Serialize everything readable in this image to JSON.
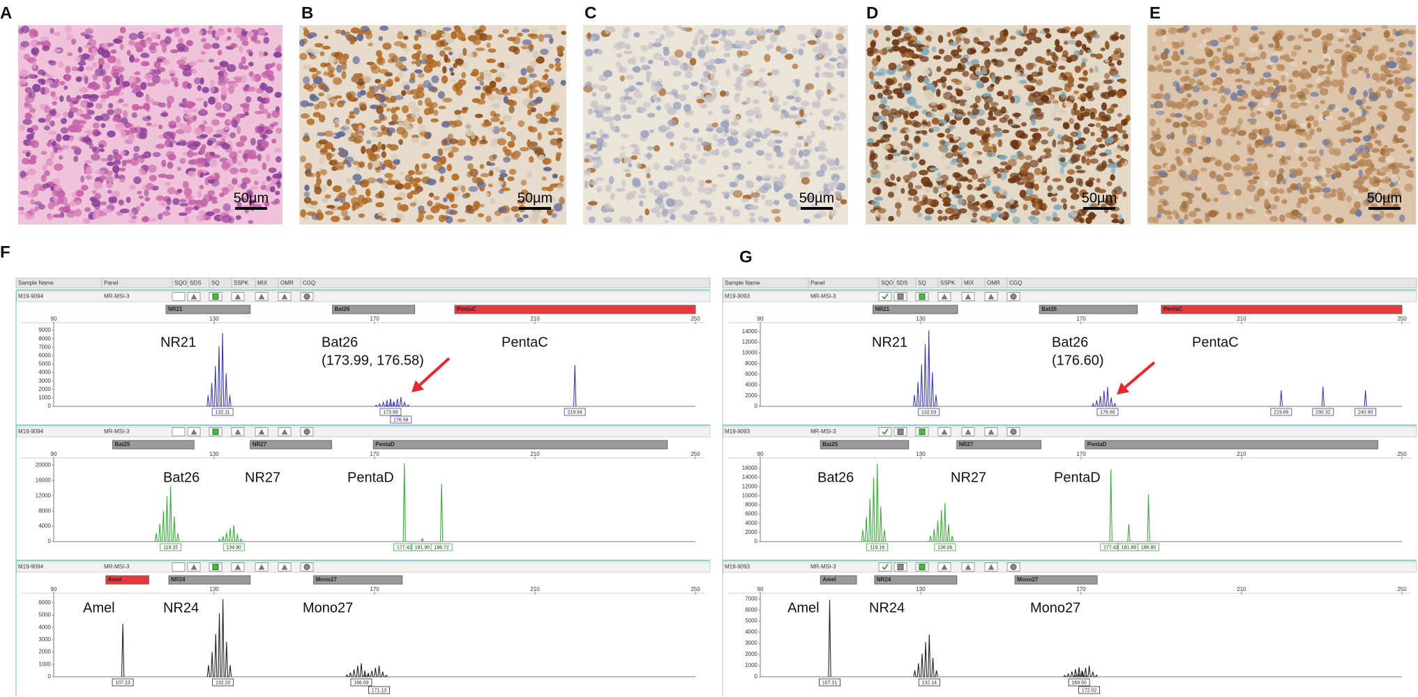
{
  "image_panels": [
    {
      "label": "A",
      "scale_bar": "50µm"
    },
    {
      "label": "B",
      "scale_bar": "50µm"
    },
    {
      "label": "C",
      "scale_bar": "50µm"
    },
    {
      "label": "D",
      "scale_bar": "50µm"
    },
    {
      "label": "E",
      "scale_bar": "50µm"
    }
  ],
  "electropherograms": [
    {
      "label": "F",
      "header": [
        "Sample Name",
        "Panel",
        "SQO",
        "SDS",
        "SQ",
        "SSPK",
        "MIX",
        "OMR",
        "CGQ"
      ],
      "traces": [
        {
          "sample": "M19-9094",
          "panel": "MR-MSI-3",
          "color": "#3b3bab",
          "markers": [
            {
              "name": "NR21",
              "range": [
                118,
                139
              ],
              "color": "#9a9a9a"
            },
            {
              "name": "Bat26",
              "range": [
                159.5,
                180
              ],
              "color": "#9a9a9a"
            },
            {
              "name": "PentaC",
              "range": [
                190,
                250
              ],
              "color": "#e8383d"
            }
          ],
          "xlim": [
            90,
            250
          ],
          "xticks": [
            90,
            130,
            170,
            210,
            250
          ],
          "ylim": [
            0,
            9500
          ],
          "yticks": [
            0,
            1000,
            2000,
            3000,
            4000,
            5000,
            6000,
            7000,
            8000,
            9000
          ],
          "annotations": [
            "NR21",
            "Bat26",
            "(173.99, 176.58)",
            "PentaC"
          ],
          "peaks": [
            {
              "size": 132.11,
              "height": 8700
            },
            {
              "size": 173.99,
              "height": 900
            },
            {
              "size": 176.58,
              "height": 1100
            },
            {
              "size": 219.94,
              "height": 4900
            }
          ]
        },
        {
          "sample": "M19-9094",
          "panel": "MR-MSI-3",
          "color": "#3aaa3a",
          "markers": [
            {
              "name": "Bat25",
              "range": [
                104.7,
                125
              ],
              "color": "#9a9a9a"
            },
            {
              "name": "NR27",
              "range": [
                139,
                159.3
              ],
              "color": "#9a9a9a"
            },
            {
              "name": "PentaD",
              "range": [
                169.7,
                243
              ],
              "color": "#9a9a9a"
            }
          ],
          "xlim": [
            90,
            250
          ],
          "xticks": [
            90,
            130,
            170,
            210,
            250
          ],
          "ylim": [
            0,
            21000
          ],
          "yticks": [
            0,
            4000,
            8000,
            12000,
            16000,
            20000
          ],
          "annotations": [
            "Bat26",
            "NR27",
            "PentaD"
          ],
          "peaks": [
            {
              "size": 119.15,
              "height": 14500
            },
            {
              "size": 134.9,
              "label": "134.90",
              "height": 4300
            },
            {
              "size": 177.42,
              "height": 20500
            },
            {
              "size": 181.9,
              "label": "181.90",
              "height": 800
            },
            {
              "size": 186.72,
              "height": 15200
            }
          ]
        },
        {
          "sample": "M19-9094",
          "panel": "MR-MSI-3",
          "color": "#222222",
          "markers": [
            {
              "name": "Amel",
              "range": [
                103,
                113.7
              ],
              "color": "#e8383d"
            },
            {
              "name": "NR24",
              "range": [
                118.7,
                139
              ],
              "color": "#9a9a9a"
            },
            {
              "name": "Mono27",
              "range": [
                154.8,
                176.9
              ],
              "color": "#9a9a9a"
            }
          ],
          "xlim": [
            90,
            250
          ],
          "xticks": [
            90,
            130,
            170,
            210,
            250
          ],
          "ylim": [
            0,
            6500
          ],
          "yticks": [
            0,
            1000,
            2000,
            3000,
            4000,
            5000,
            6000
          ],
          "annotations": [
            "Amel",
            "NR24",
            "Mono27"
          ],
          "peaks": [
            {
              "size": 107.23,
              "height": 4300
            },
            {
              "size": 132.2,
              "label": "132.20",
              "height": 6300
            },
            {
              "size": 166.69,
              "height": 1100
            },
            {
              "size": 171.13,
              "height": 900
            }
          ]
        }
      ]
    },
    {
      "label": "G",
      "header": [
        "Sample Name",
        "Panel",
        "SQO",
        "SDS",
        "SQ",
        "SSPK",
        "MIX",
        "OMR",
        "CGQ"
      ],
      "traces": [
        {
          "sample": "M19-9093",
          "panel": "MR-MSI-3",
          "color": "#3b3bab",
          "markers": [
            {
              "name": "NR21",
              "range": [
                118.1,
                139.2
              ],
              "color": "#9a9a9a"
            },
            {
              "name": "Bat26",
              "range": [
                159.6,
                184
              ],
              "color": "#9a9a9a"
            },
            {
              "name": "PentaC",
              "range": [
                190,
                250
              ],
              "color": "#e8383d"
            }
          ],
          "xlim": [
            90,
            250
          ],
          "xticks": [
            90,
            130,
            170,
            210,
            250
          ],
          "ylim": [
            0,
            15000
          ],
          "yticks": [
            0,
            2000,
            4000,
            6000,
            8000,
            10000,
            12000,
            14000
          ],
          "annotations": [
            "NR21",
            "Bat26",
            "(176.60)",
            "PentaC"
          ],
          "peaks": [
            {
              "size": 132.03,
              "height": 14200
            },
            {
              "size": 176.6,
              "label": "176.60",
              "height": 3600
            },
            {
              "size": 219.89,
              "height": 3000
            },
            {
              "size": 230.32,
              "height": 3700
            },
            {
              "size": 240.9,
              "label": "240.90",
              "height": 3000
            }
          ]
        },
        {
          "sample": "M19-9093",
          "panel": "MR-MSI-3",
          "color": "#3aaa3a",
          "markers": [
            {
              "name": "Bat25",
              "range": [
                105,
                127
              ],
              "color": "#9a9a9a"
            },
            {
              "name": "NR27",
              "range": [
                139,
                160
              ],
              "color": "#9a9a9a"
            },
            {
              "name": "PentaD",
              "range": [
                171,
                244
              ],
              "color": "#9a9a9a"
            }
          ],
          "xlim": [
            90,
            250
          ],
          "xticks": [
            90,
            130,
            170,
            210,
            250
          ],
          "ylim": [
            0,
            17500
          ],
          "yticks": [
            0,
            2000,
            4000,
            6000,
            8000,
            10000,
            12000,
            14000,
            16000
          ],
          "annotations": [
            "Bat26",
            "NR27",
            "PentaD"
          ],
          "peaks": [
            {
              "size": 119.16,
              "height": 17000
            },
            {
              "size": 136.06,
              "height": 8400
            },
            {
              "size": 177.43,
              "height": 15800
            },
            {
              "size": 181.89,
              "height": 3800
            },
            {
              "size": 186.8,
              "label": "186.80",
              "height": 10300
            }
          ]
        },
        {
          "sample": "M19-9093",
          "panel": "MR-MSI-3",
          "color": "#222222",
          "markers": [
            {
              "name": "Amel",
              "range": [
                105,
                114
              ],
              "color": "#9a9a9a"
            },
            {
              "name": "NR24",
              "range": [
                118.5,
                139
              ],
              "color": "#9a9a9a"
            },
            {
              "name": "Mono27",
              "range": [
                153.5,
                174
              ],
              "color": "#9a9a9a"
            }
          ],
          "xlim": [
            90,
            250
          ],
          "xticks": [
            90,
            130,
            170,
            210,
            250
          ],
          "ylim": [
            0,
            7200
          ],
          "yticks": [
            0,
            1000,
            2000,
            3000,
            4000,
            5000,
            6000,
            7000
          ],
          "annotations": [
            "Amel",
            "NR24",
            "Mono27"
          ],
          "peaks": [
            {
              "size": 107.31,
              "height": 6900
            },
            {
              "size": 132.14,
              "height": 3800
            },
            {
              "size": 169.5,
              "label": "169.50",
              "height": 850
            },
            {
              "size": 172.02,
              "height": 1000
            }
          ]
        }
      ]
    }
  ]
}
